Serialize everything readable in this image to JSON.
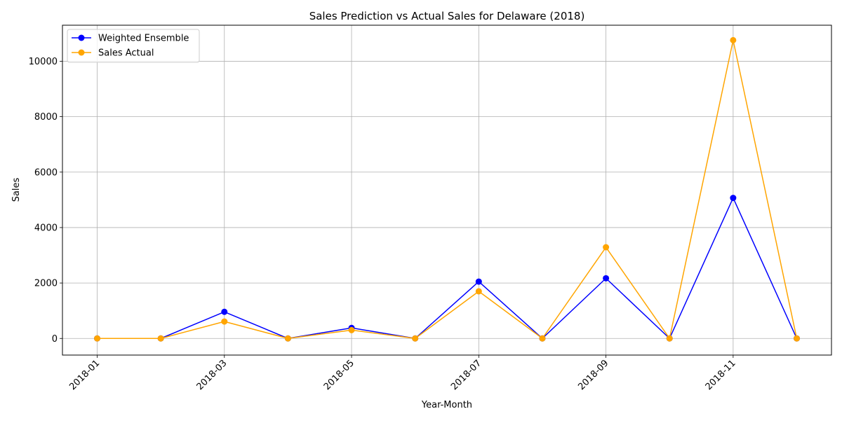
{
  "chart_data": {
    "type": "line",
    "title": "Sales Prediction vs Actual Sales for Delaware (2018)",
    "xlabel": "Year-Month",
    "ylabel": "Sales",
    "x": [
      "2018-01",
      "2018-02",
      "2018-03",
      "2018-04",
      "2018-05",
      "2018-06",
      "2018-07",
      "2018-08",
      "2018-09",
      "2018-10",
      "2018-11",
      "2018-12"
    ],
    "xticks": [
      "2018-01",
      "2018-03",
      "2018-05",
      "2018-07",
      "2018-09",
      "2018-11"
    ],
    "yticks": [
      0,
      2000,
      4000,
      6000,
      8000,
      10000
    ],
    "ylim": [
      -600,
      11300
    ],
    "grid": true,
    "legend_position": "top-left",
    "series": [
      {
        "name": "Weighted Ensemble",
        "color": "#0000ff",
        "marker": "circle",
        "values": [
          0,
          0,
          960,
          0,
          380,
          0,
          2050,
          0,
          2170,
          0,
          5070,
          0
        ]
      },
      {
        "name": "Sales Actual",
        "color": "#ffa500",
        "marker": "circle",
        "values": [
          0,
          0,
          610,
          0,
          300,
          0,
          1700,
          0,
          3290,
          0,
          10760,
          0
        ]
      }
    ]
  }
}
